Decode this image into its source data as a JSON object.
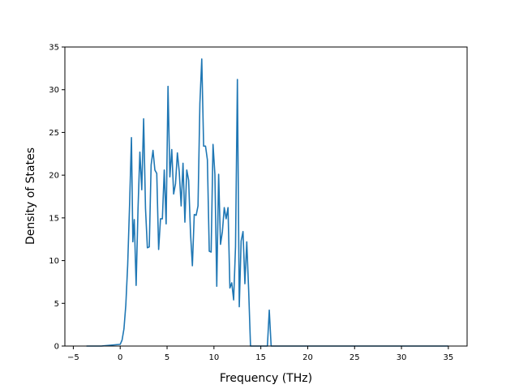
{
  "chart_data": {
    "type": "line",
    "title": "",
    "xlabel": "Frequency (THz)",
    "ylabel": "Density of States",
    "xlim": [
      -5.9,
      37.0
    ],
    "ylim": [
      0,
      35
    ],
    "xticks": [
      -5,
      0,
      5,
      10,
      15,
      20,
      25,
      30,
      35
    ],
    "yticks": [
      0,
      5,
      10,
      15,
      20,
      25,
      30,
      35
    ],
    "grid": false,
    "legend": "none",
    "series": [
      {
        "color": "#1f77b4",
        "x": [
          -3.6,
          -2.0,
          0.0,
          0.2,
          0.4,
          0.6,
          0.8,
          1.0,
          1.2,
          1.35,
          1.5,
          1.7,
          1.9,
          2.1,
          2.3,
          2.5,
          2.7,
          2.9,
          3.1,
          3.3,
          3.5,
          3.7,
          3.9,
          4.1,
          4.3,
          4.5,
          4.7,
          4.9,
          5.1,
          5.3,
          5.5,
          5.7,
          5.9,
          6.1,
          6.3,
          6.5,
          6.7,
          6.9,
          7.1,
          7.3,
          7.5,
          7.7,
          7.9,
          8.1,
          8.3,
          8.5,
          8.7,
          8.9,
          9.1,
          9.3,
          9.5,
          9.7,
          9.9,
          10.1,
          10.3,
          10.5,
          10.7,
          10.9,
          11.1,
          11.3,
          11.5,
          11.7,
          11.9,
          12.1,
          12.3,
          12.5,
          12.7,
          12.9,
          13.1,
          13.3,
          13.5,
          13.7,
          13.9,
          14.1,
          14.3,
          14.5,
          15.7,
          15.9,
          16.1,
          16.3,
          18.0,
          25.0,
          35.0
        ],
        "y": [
          0,
          0,
          0.2,
          0.7,
          2.0,
          4.8,
          9.5,
          16.5,
          24.4,
          12.2,
          14.8,
          7.1,
          16.0,
          22.7,
          18.3,
          26.6,
          16.1,
          11.5,
          11.6,
          21.2,
          22.9,
          20.6,
          20.2,
          11.3,
          14.9,
          14.9,
          20.6,
          14.3,
          30.4,
          19.8,
          23.0,
          17.8,
          19.0,
          22.6,
          20.4,
          16.4,
          21.4,
          14.5,
          20.6,
          19.4,
          13.2,
          9.4,
          15.4,
          15.3,
          16.4,
          28.4,
          33.6,
          23.4,
          23.4,
          21.8,
          11.1,
          11.0,
          23.6,
          20.1,
          7.0,
          20.1,
          11.9,
          13.4,
          16.2,
          14.9,
          16.2,
          6.8,
          7.4,
          5.4,
          11.6,
          31.2,
          4.6,
          12.3,
          13.4,
          7.3,
          12.2,
          6.6,
          0.0,
          0.0,
          0.0,
          0.0,
          0.0,
          4.2,
          0.0,
          0.0,
          0.0,
          0.0,
          0.0
        ]
      }
    ]
  }
}
